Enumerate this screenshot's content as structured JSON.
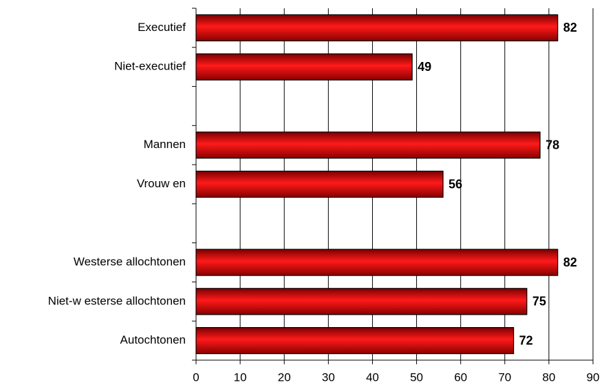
{
  "chart_data": {
    "type": "bar",
    "orientation": "horizontal",
    "categories": [
      "Executief",
      "Niet-executief",
      null,
      "Mannen",
      "Vrouw en",
      null,
      "Westerse allochtonen",
      "Niet-w esterse allochtonen",
      "Autochtonen"
    ],
    "values": [
      82,
      49,
      null,
      78,
      56,
      null,
      82,
      75,
      72
    ],
    "color": "#e00000",
    "xlim": [
      0,
      90
    ],
    "xticks": [
      0,
      10,
      20,
      30,
      40,
      50,
      60,
      70,
      80,
      90
    ],
    "grid": true
  }
}
